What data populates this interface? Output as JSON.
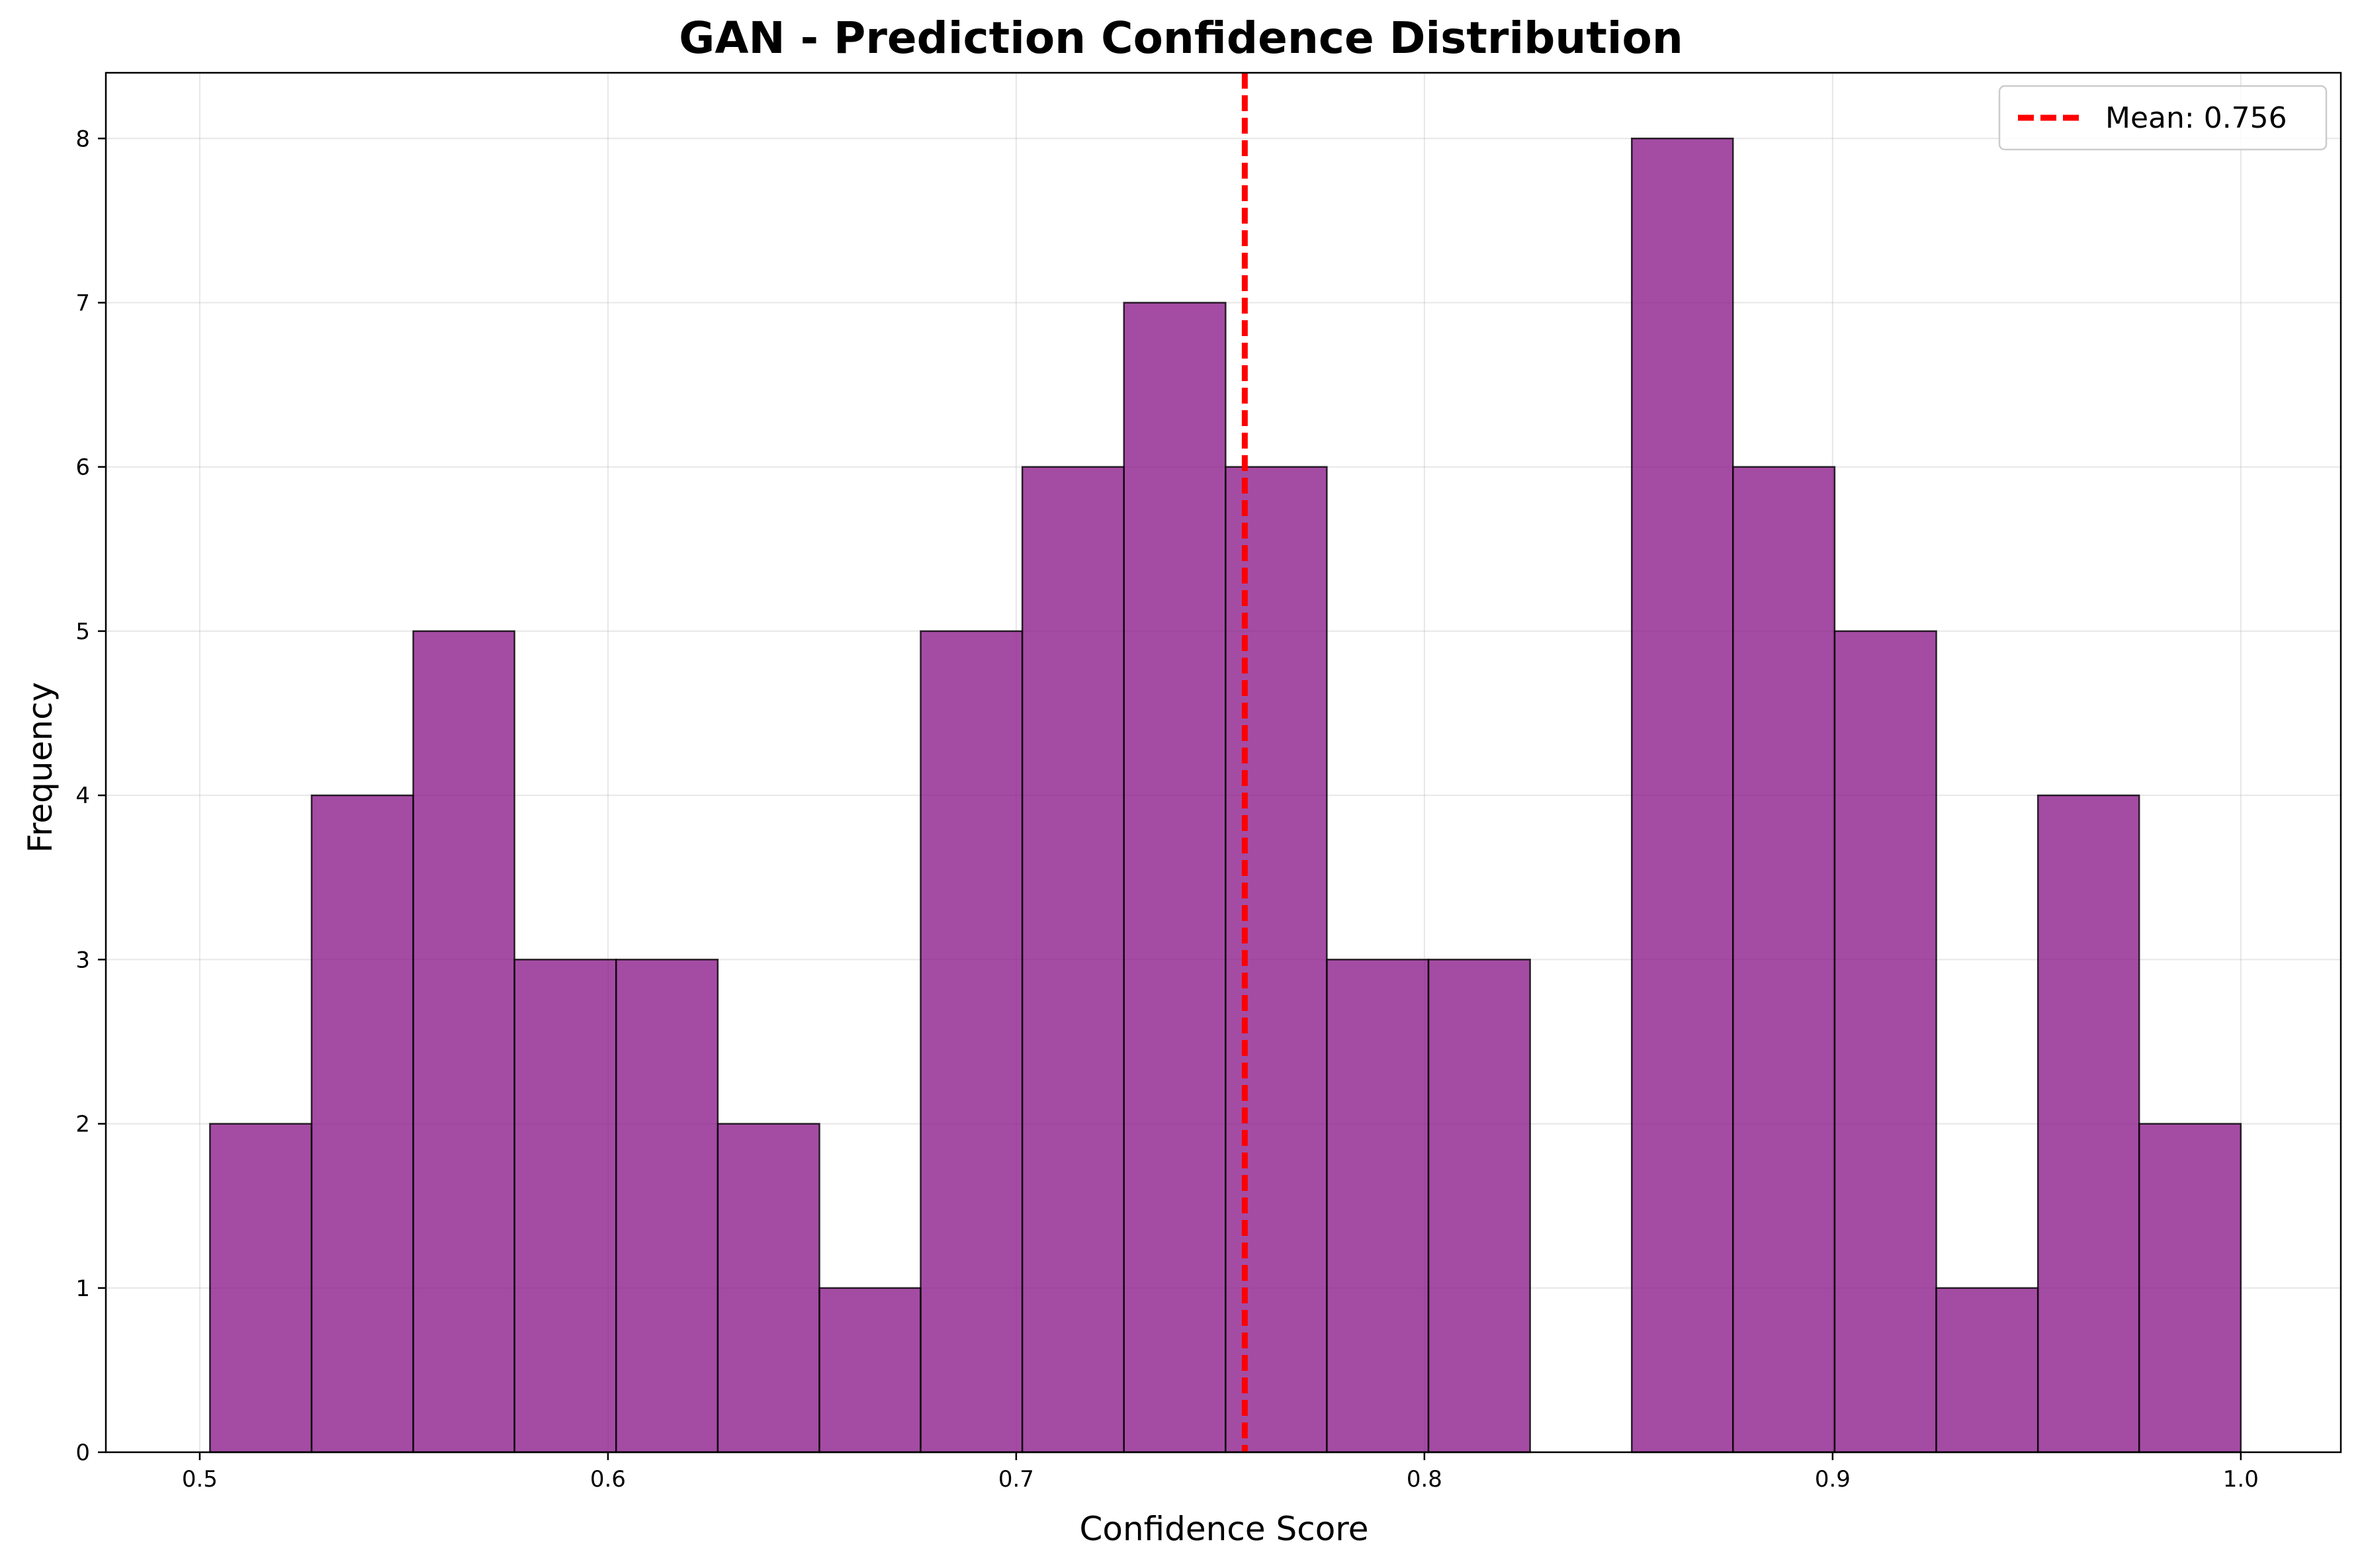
{
  "chart_data": {
    "type": "bar",
    "title": "GAN - Prediction Confidence Distribution",
    "xlabel": "Confidence Score",
    "ylabel": "Frequency",
    "xlim": [
      0.477,
      1.0245
    ],
    "ylim": [
      0,
      8.4
    ],
    "xticks": [
      0.5,
      0.6,
      0.7,
      0.8,
      0.9,
      1.0
    ],
    "xtick_labels": [
      "0.5",
      "0.6",
      "0.7",
      "0.8",
      "0.9",
      "1.0"
    ],
    "yticks": [
      0,
      1,
      2,
      3,
      4,
      5,
      6,
      7,
      8
    ],
    "ytick_labels": [
      "0",
      "1",
      "2",
      "3",
      "4",
      "5",
      "6",
      "7",
      "8"
    ],
    "grid": true,
    "legend_position": "upper right",
    "bar_color": "#8B1A89",
    "bar_edge_color": "#000000",
    "bins": [
      {
        "start": 0.5025,
        "end": 0.5274,
        "count": 2
      },
      {
        "start": 0.5274,
        "end": 0.5523,
        "count": 4
      },
      {
        "start": 0.5523,
        "end": 0.5771,
        "count": 5
      },
      {
        "start": 0.5771,
        "end": 0.602,
        "count": 3
      },
      {
        "start": 0.602,
        "end": 0.6269,
        "count": 3
      },
      {
        "start": 0.6269,
        "end": 0.6518,
        "count": 2
      },
      {
        "start": 0.6518,
        "end": 0.6766,
        "count": 1
      },
      {
        "start": 0.6766,
        "end": 0.7015,
        "count": 5
      },
      {
        "start": 0.7015,
        "end": 0.7264,
        "count": 6
      },
      {
        "start": 0.7264,
        "end": 0.7513,
        "count": 7
      },
      {
        "start": 0.7513,
        "end": 0.7761,
        "count": 6
      },
      {
        "start": 0.7761,
        "end": 0.801,
        "count": 3
      },
      {
        "start": 0.801,
        "end": 0.8259,
        "count": 3
      },
      {
        "start": 0.8259,
        "end": 0.8508,
        "count": 0
      },
      {
        "start": 0.8508,
        "end": 0.8756,
        "count": 8
      },
      {
        "start": 0.8756,
        "end": 0.9005,
        "count": 6
      },
      {
        "start": 0.9005,
        "end": 0.9254,
        "count": 5
      },
      {
        "start": 0.9254,
        "end": 0.9503,
        "count": 1
      },
      {
        "start": 0.9503,
        "end": 0.9751,
        "count": 4
      },
      {
        "start": 0.9751,
        "end": 1.0,
        "count": 2
      }
    ],
    "mean": {
      "value": 0.756,
      "label": "Mean: 0.756",
      "color": "#FF0000"
    }
  }
}
